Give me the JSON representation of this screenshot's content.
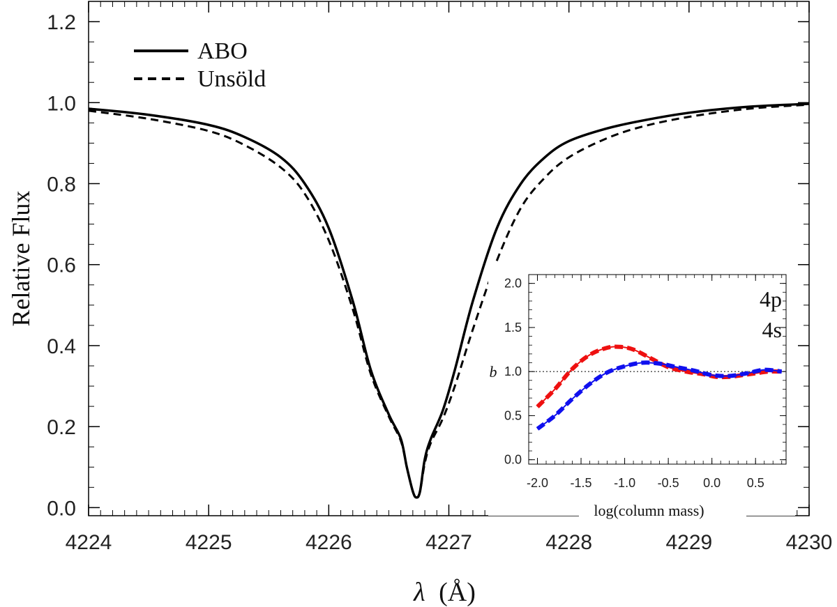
{
  "chart_data": [
    {
      "type": "line",
      "title": "",
      "xlabel_symbol": "λ",
      "xlabel_unit": "(Å)",
      "ylabel": "Relative Flux",
      "xlim": [
        4224,
        4230
      ],
      "ylim": [
        -0.02,
        1.25
      ],
      "xticks": [
        4224,
        4225,
        4226,
        4227,
        4228,
        4229,
        4230
      ],
      "xtick_labels": [
        "4224",
        "4225",
        "4226",
        "4227",
        "4228",
        "4229",
        "4230"
      ],
      "yticks": [
        0.0,
        0.2,
        0.4,
        0.6,
        0.8,
        1.0,
        1.2
      ],
      "ytick_labels": [
        "0.0",
        "0.2",
        "0.4",
        "0.6",
        "0.8",
        "1.0",
        "1.2"
      ],
      "legend": {
        "placement": "top-left",
        "entries": [
          "ABO",
          "Unsöld"
        ]
      },
      "series": [
        {
          "name": "ABO",
          "style": "solid",
          "color": "#000000",
          "x": [
            4224.0,
            4224.5,
            4225.0,
            4225.3,
            4225.6,
            4225.8,
            4226.0,
            4226.2,
            4226.35,
            4226.5,
            4226.6,
            4226.65,
            4226.7,
            4226.73,
            4226.76,
            4226.8,
            4226.85,
            4226.95,
            4227.05,
            4227.2,
            4227.4,
            4227.6,
            4227.8,
            4228.0,
            4228.3,
            4228.6,
            4229.0,
            4229.5,
            4230.0
          ],
          "y": [
            0.985,
            0.97,
            0.945,
            0.915,
            0.865,
            0.8,
            0.69,
            0.51,
            0.34,
            0.23,
            0.17,
            0.1,
            0.04,
            0.025,
            0.04,
            0.12,
            0.17,
            0.24,
            0.34,
            0.51,
            0.69,
            0.8,
            0.865,
            0.905,
            0.935,
            0.955,
            0.975,
            0.99,
            0.997
          ]
        },
        {
          "name": "Unsöld",
          "style": "dashed",
          "color": "#000000",
          "x": [
            4224.0,
            4224.5,
            4225.0,
            4225.3,
            4225.6,
            4225.8,
            4226.0,
            4226.2,
            4226.35,
            4226.5,
            4226.6,
            4226.65,
            4226.7,
            4226.73,
            4226.76,
            4226.8,
            4226.85,
            4226.95,
            4227.05,
            4227.2,
            4227.4,
            4227.6,
            4227.8,
            4228.0,
            4228.3,
            4228.6,
            4229.0,
            4229.5,
            4230.0
          ],
          "y": [
            0.98,
            0.96,
            0.93,
            0.895,
            0.84,
            0.775,
            0.66,
            0.49,
            0.33,
            0.225,
            0.165,
            0.1,
            0.04,
            0.025,
            0.04,
            0.11,
            0.16,
            0.22,
            0.3,
            0.44,
            0.61,
            0.74,
            0.815,
            0.865,
            0.91,
            0.94,
            0.965,
            0.985,
            0.995
          ]
        }
      ]
    },
    {
      "type": "line",
      "title": "",
      "xlabel": "log(column mass)",
      "ylabel": "b",
      "xlim": [
        -2.1,
        0.85
      ],
      "ylim": [
        -0.05,
        2.1
      ],
      "xticks": [
        -2.0,
        -1.5,
        -1.0,
        -0.5,
        0.0,
        0.5
      ],
      "xtick_labels": [
        "-2.0",
        "-1.5",
        "-1.0",
        "-0.5",
        "0.0",
        "0.5"
      ],
      "yticks": [
        0.0,
        0.5,
        1.0,
        1.5,
        2.0
      ],
      "ytick_labels": [
        "0.0",
        "0.5",
        "1.0",
        "1.5",
        "2.0"
      ],
      "reference_line": {
        "y": 1.0,
        "style": "dotted"
      },
      "annotations": [
        {
          "text": "4p",
          "color": "#1010ee"
        },
        {
          "text": "4s",
          "color": "#ee1010"
        }
      ],
      "series": [
        {
          "name": "4s",
          "color": "#ee1010",
          "x": [
            -2.0,
            -1.8,
            -1.6,
            -1.4,
            -1.2,
            -1.05,
            -0.9,
            -0.7,
            -0.5,
            -0.3,
            -0.1,
            0.05,
            0.2,
            0.35,
            0.5,
            0.65,
            0.8
          ],
          "y": [
            0.6,
            0.8,
            1.03,
            1.19,
            1.27,
            1.28,
            1.25,
            1.15,
            1.05,
            1.0,
            0.97,
            0.94,
            0.94,
            0.96,
            0.98,
            1.0,
            1.0
          ]
        },
        {
          "name": "4p",
          "color": "#1010ee",
          "x": [
            -2.0,
            -1.8,
            -1.6,
            -1.4,
            -1.2,
            -1.0,
            -0.8,
            -0.6,
            -0.4,
            -0.2,
            0.0,
            0.2,
            0.4,
            0.6,
            0.8
          ],
          "y": [
            0.35,
            0.5,
            0.69,
            0.86,
            0.99,
            1.06,
            1.1,
            1.09,
            1.05,
            1.01,
            0.96,
            0.95,
            0.98,
            1.02,
            1.0
          ]
        }
      ]
    }
  ]
}
